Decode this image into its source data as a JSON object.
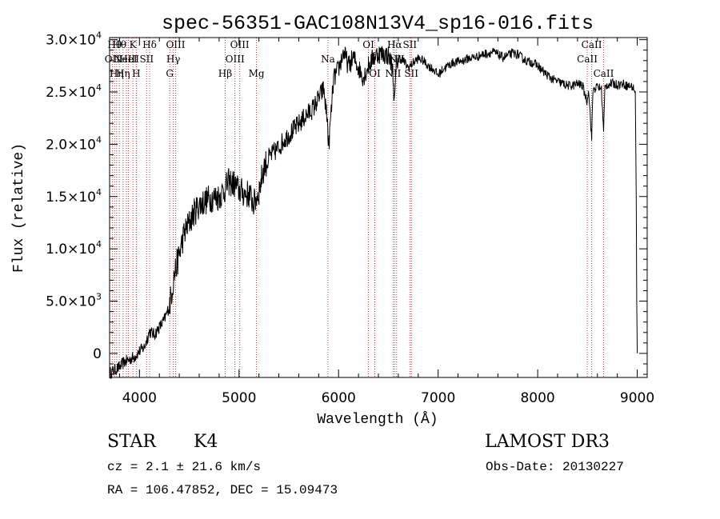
{
  "chart_data": {
    "type": "line",
    "title": "spec-56351-GAC108N13V4_sp16-016.fits",
    "xlabel": "Wavelength (Å)",
    "ylabel": "Flux (relative)",
    "xlim": [
      3700,
      9100
    ],
    "ylim": [
      -2300,
      30200
    ],
    "x_ticks": [
      4000,
      5000,
      6000,
      7000,
      8000,
      9000
    ],
    "x_tick_labels": [
      "4000",
      "5000",
      "6000",
      "7000",
      "8000",
      "9000"
    ],
    "x_minor_step": 200,
    "y_ticks": [
      0,
      5000,
      10000,
      15000,
      20000,
      25000,
      30000
    ],
    "y_tick_labels": [
      {
        "mant": "0",
        "exp": ""
      },
      {
        "mant": "5.0×10",
        "exp": "3"
      },
      {
        "mant": "1.0×10",
        "exp": "4"
      },
      {
        "mant": "1.5×10",
        "exp": "4"
      },
      {
        "mant": "2.0×10",
        "exp": "4"
      },
      {
        "mant": "2.5×10",
        "exp": "4"
      },
      {
        "mant": "3.0×10",
        "exp": "4"
      }
    ],
    "y_minor_step": 1000,
    "grid": false,
    "series": [
      {
        "name": "spectrum",
        "color": "#000000",
        "points": [
          [
            3700,
            -1900
          ],
          [
            3750,
            -1600
          ],
          [
            3800,
            -1300
          ],
          [
            3850,
            -800
          ],
          [
            3900,
            -600
          ],
          [
            3950,
            -300
          ],
          [
            4000,
            200
          ],
          [
            4050,
            600
          ],
          [
            4100,
            2100
          ],
          [
            4150,
            1800
          ],
          [
            4200,
            2500
          ],
          [
            4250,
            3200
          ],
          [
            4300,
            4500
          ],
          [
            4350,
            7500
          ],
          [
            4400,
            9500
          ],
          [
            4450,
            11500
          ],
          [
            4500,
            12500
          ],
          [
            4550,
            13500
          ],
          [
            4600,
            14200
          ],
          [
            4650,
            14500
          ],
          [
            4700,
            14800
          ],
          [
            4750,
            14900
          ],
          [
            4800,
            15000
          ],
          [
            4850,
            15600
          ],
          [
            4900,
            16400
          ],
          [
            4950,
            16200
          ],
          [
            5000,
            15600
          ],
          [
            5050,
            15300
          ],
          [
            5100,
            15200
          ],
          [
            5150,
            14300
          ],
          [
            5200,
            15500
          ],
          [
            5250,
            17800
          ],
          [
            5300,
            18700
          ],
          [
            5350,
            19200
          ],
          [
            5400,
            19700
          ],
          [
            5450,
            20400
          ],
          [
            5500,
            20900
          ],
          [
            5550,
            21400
          ],
          [
            5600,
            21900
          ],
          [
            5650,
            22500
          ],
          [
            5700,
            23000
          ],
          [
            5750,
            23500
          ],
          [
            5800,
            24400
          ],
          [
            5850,
            25300
          ],
          [
            5890,
            22000
          ],
          [
            5900,
            19500
          ],
          [
            5910,
            21000
          ],
          [
            5950,
            26200
          ],
          [
            6000,
            27200
          ],
          [
            6050,
            28800
          ],
          [
            6100,
            27500
          ],
          [
            6150,
            28300
          ],
          [
            6200,
            27300
          ],
          [
            6250,
            26400
          ],
          [
            6300,
            27500
          ],
          [
            6350,
            28300
          ],
          [
            6400,
            28700
          ],
          [
            6450,
            28600
          ],
          [
            6500,
            28500
          ],
          [
            6540,
            27500
          ],
          [
            6563,
            24000
          ],
          [
            6580,
            27500
          ],
          [
            6600,
            28300
          ],
          [
            6650,
            28000
          ],
          [
            6700,
            27300
          ],
          [
            6750,
            27800
          ],
          [
            6800,
            28200
          ],
          [
            6850,
            28000
          ],
          [
            6900,
            27500
          ],
          [
            6950,
            27200
          ],
          [
            7000,
            26600
          ],
          [
            7050,
            27200
          ],
          [
            7100,
            27500
          ],
          [
            7150,
            27800
          ],
          [
            7200,
            27900
          ],
          [
            7250,
            28000
          ],
          [
            7300,
            28200
          ],
          [
            7350,
            28300
          ],
          [
            7400,
            28400
          ],
          [
            7450,
            28600
          ],
          [
            7500,
            28700
          ],
          [
            7550,
            28800
          ],
          [
            7600,
            28600
          ],
          [
            7650,
            28300
          ],
          [
            7700,
            28500
          ],
          [
            7750,
            28700
          ],
          [
            7800,
            28600
          ],
          [
            7850,
            28200
          ],
          [
            7900,
            27900
          ],
          [
            7950,
            27800
          ],
          [
            8000,
            27500
          ],
          [
            8050,
            27000
          ],
          [
            8100,
            26600
          ],
          [
            8150,
            26200
          ],
          [
            8200,
            26000
          ],
          [
            8250,
            25800
          ],
          [
            8300,
            25600
          ],
          [
            8350,
            25600
          ],
          [
            8400,
            25800
          ],
          [
            8450,
            25600
          ],
          [
            8498,
            24000
          ],
          [
            8510,
            25500
          ],
          [
            8542,
            20500
          ],
          [
            8555,
            25200
          ],
          [
            8600,
            25500
          ],
          [
            8640,
            25300
          ],
          [
            8662,
            21200
          ],
          [
            8675,
            25400
          ],
          [
            8700,
            25700
          ],
          [
            8750,
            25800
          ],
          [
            8800,
            25700
          ],
          [
            8850,
            25800
          ],
          [
            8900,
            25600
          ],
          [
            8950,
            25500
          ],
          [
            8980,
            25100
          ],
          [
            8990,
            15000
          ],
          [
            8995,
            5000
          ],
          [
            9000,
            0
          ]
        ]
      }
    ],
    "lines": [
      {
        "wave": 3727,
        "label": "OII",
        "row": 1
      },
      {
        "wave": 3750,
        "label": "Hθ",
        "row": 0
      },
      {
        "wave": 3771,
        "label": "Hη",
        "row": 2
      },
      {
        "wave": 3798,
        "label": "Hθ",
        "row": 0
      },
      {
        "wave": 3835,
        "label": "Hη",
        "row": 2
      },
      {
        "wave": 3869,
        "label": "NeIII",
        "row": 1
      },
      {
        "wave": 3889,
        "label": "HeI",
        "row": 1
      },
      {
        "wave": 3934,
        "label": "K",
        "row": 0
      },
      {
        "wave": 3968,
        "label": "H",
        "row": 2
      },
      {
        "wave": 4072,
        "label": "SII",
        "row": 1
      },
      {
        "wave": 4102,
        "label": "Hδ",
        "row": 0
      },
      {
        "wave": 4304,
        "label": "G",
        "row": 2
      },
      {
        "wave": 4340,
        "label": "Hγ",
        "row": 1
      },
      {
        "wave": 4363,
        "label": "OIII",
        "row": 0
      },
      {
        "wave": 4861,
        "label": "Hβ",
        "row": 2
      },
      {
        "wave": 4959,
        "label": "OIII",
        "row": 1
      },
      {
        "wave": 5007,
        "label": "OIII",
        "row": 0
      },
      {
        "wave": 5175,
        "label": "Mg",
        "row": 2
      },
      {
        "wave": 5893,
        "label": "Na",
        "row": 1
      },
      {
        "wave": 6300,
        "label": "OI",
        "row": 0
      },
      {
        "wave": 6364,
        "label": "OI",
        "row": 2
      },
      {
        "wave": 6548,
        "label": "NII",
        "row": 2
      },
      {
        "wave": 6563,
        "label": "Hα",
        "row": 0
      },
      {
        "wave": 6583,
        "label": "NII",
        "row": 1
      },
      {
        "wave": 6716,
        "label": "SII",
        "row": 0
      },
      {
        "wave": 6731,
        "label": "SII",
        "row": 2
      },
      {
        "wave": 8498,
        "label": "CaII",
        "row": 1
      },
      {
        "wave": 8542,
        "label": "CaII",
        "row": 0
      },
      {
        "wave": 8662,
        "label": "CaII",
        "row": 2
      }
    ]
  },
  "info": {
    "object_type": "STAR",
    "subclass": "K4",
    "survey": "LAMOST DR3",
    "redshift": "cz = 2.1 ± 21.6 km/s",
    "obs_date": "Obs-Date: 20130227",
    "coords": "RA = 106.47852, DEC =  15.09473"
  },
  "colors": {
    "line_marker": "#cc3333",
    "axis": "#000000",
    "background": "#ffffff"
  }
}
